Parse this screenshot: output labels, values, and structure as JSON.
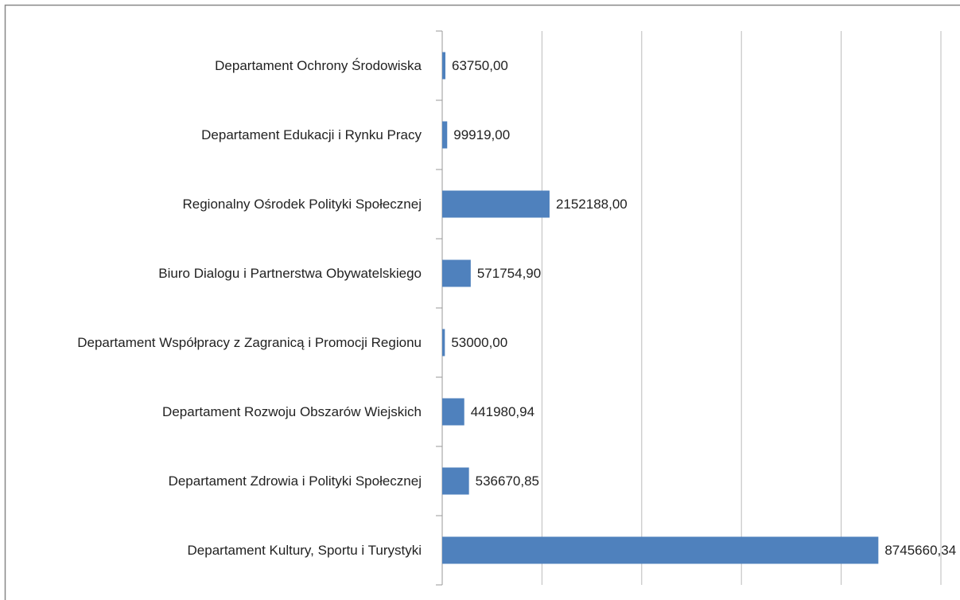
{
  "chart_data": {
    "type": "bar",
    "orientation": "horizontal",
    "categories": [
      "Departament Ochrony Środowiska",
      "Departament Edukacji i Rynku Pracy",
      "Regionalny Ośrodek Polityki Społecznej",
      "Biuro Dialogu i Partnerstwa Obywatelskiego",
      "Departament Współpracy z Zagranicą i Promocji Regionu",
      "Departament Rozwoju Obszarów Wiejskich",
      "Departament Zdrowia i Polityki Społecznej",
      "Departament Kultury, Sportu i Turystyki"
    ],
    "values": [
      63750,
      99919,
      2152188,
      571754.9,
      53000,
      441980.94,
      536670.85,
      8745660.34
    ],
    "value_labels": [
      "63750,00",
      "99919,00",
      "2152188,00",
      "571754,90",
      "53000,00",
      "441980,94",
      "536670,85",
      "8745660,34"
    ],
    "color": "#4f81bd",
    "xlim": [
      0,
      10000000
    ],
    "xticks": [
      0,
      2000000,
      4000000,
      6000000,
      8000000,
      10000000
    ],
    "grid": true
  }
}
